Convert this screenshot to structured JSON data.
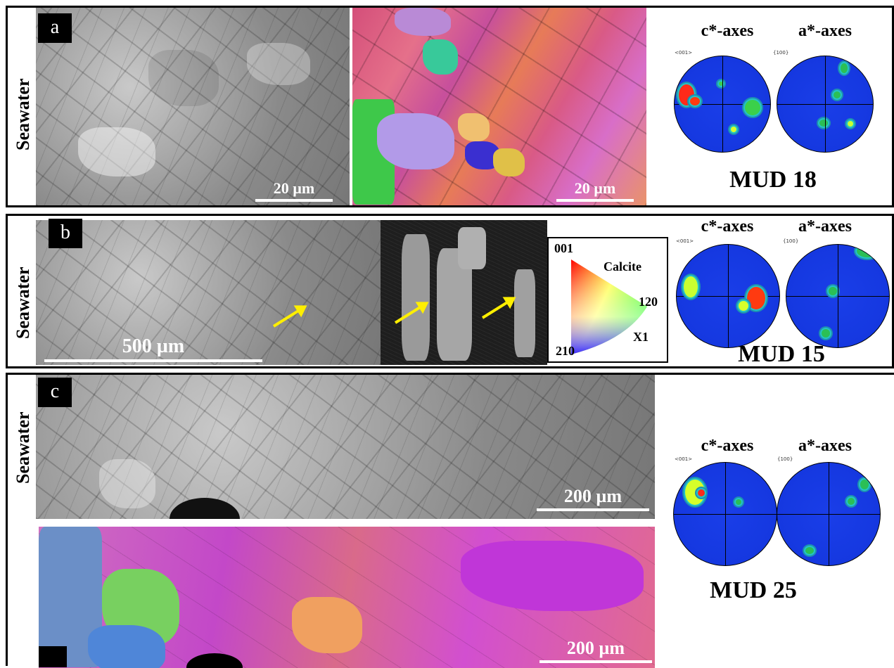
{
  "panels": [
    {
      "letter": "a",
      "side_label": "Seawater",
      "scale_sem": "20 µm",
      "scale_ebsd": "20 µm",
      "pf_c_title": "c*-axes",
      "pf_a_title": "a*-axes",
      "pf_c_small": "<001>",
      "pf_a_small": "{100}",
      "sample": "MUD 18"
    },
    {
      "letter": "b",
      "side_label": "Seawater",
      "scale_sem": "500 µm",
      "pf_c_title": "c*-axes",
      "pf_a_title": "a*-axes",
      "pf_c_small": "<001>",
      "pf_a_small": "{100}",
      "sample": "MUD 15",
      "legend": {
        "corner_top": "001",
        "corner_right": "120",
        "corner_bottom": "210",
        "mineral": "Calcite",
        "axis": "X1"
      }
    },
    {
      "letter": "c",
      "side_label": "Seawater",
      "scale_sem": "200 µm",
      "scale_ebsd": "200 µm",
      "pf_c_title": "c*-axes",
      "pf_a_title": "a*-axes",
      "pf_c_small": "<001>",
      "pf_a_small": "{100}",
      "sample": "MUD 25"
    }
  ],
  "colors": {
    "arrow": "#ffef00",
    "pole_figure_bg": "#1538e0"
  }
}
